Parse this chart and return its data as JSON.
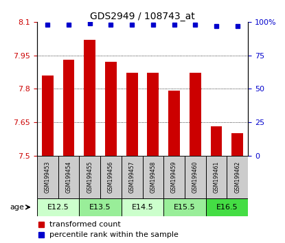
{
  "title": "GDS2949 / 108743_at",
  "samples": [
    "GSM199453",
    "GSM199454",
    "GSM199455",
    "GSM199456",
    "GSM199457",
    "GSM199458",
    "GSM199459",
    "GSM199460",
    "GSM199461",
    "GSM199462"
  ],
  "red_values": [
    7.86,
    7.93,
    8.02,
    7.92,
    7.87,
    7.87,
    7.79,
    7.87,
    7.63,
    7.6
  ],
  "blue_values": [
    98,
    98,
    99,
    98,
    98,
    98,
    98,
    98,
    97,
    97
  ],
  "ylim_left": [
    7.5,
    8.1
  ],
  "ylim_right": [
    0,
    100
  ],
  "yticks_left": [
    7.5,
    7.65,
    7.8,
    7.95,
    8.1
  ],
  "yticks_right": [
    0,
    25,
    50,
    75,
    100
  ],
  "age_groups": [
    {
      "label": "E12.5",
      "samples": [
        0,
        1
      ],
      "color": "#ccffcc"
    },
    {
      "label": "E13.5",
      "samples": [
        2,
        3
      ],
      "color": "#99ee99"
    },
    {
      "label": "E14.5",
      "samples": [
        4,
        5
      ],
      "color": "#ccffcc"
    },
    {
      "label": "E15.5",
      "samples": [
        6,
        7
      ],
      "color": "#99ee99"
    },
    {
      "label": "E16.5",
      "samples": [
        8,
        9
      ],
      "color": "#44dd44"
    }
  ],
  "red_color": "#cc0000",
  "blue_color": "#0000cc",
  "bar_width": 0.55,
  "sample_bg": "#cccccc",
  "legend_red": "transformed count",
  "legend_blue": "percentile rank within the sample",
  "gridline_ticks": [
    7.65,
    7.8,
    7.95
  ]
}
